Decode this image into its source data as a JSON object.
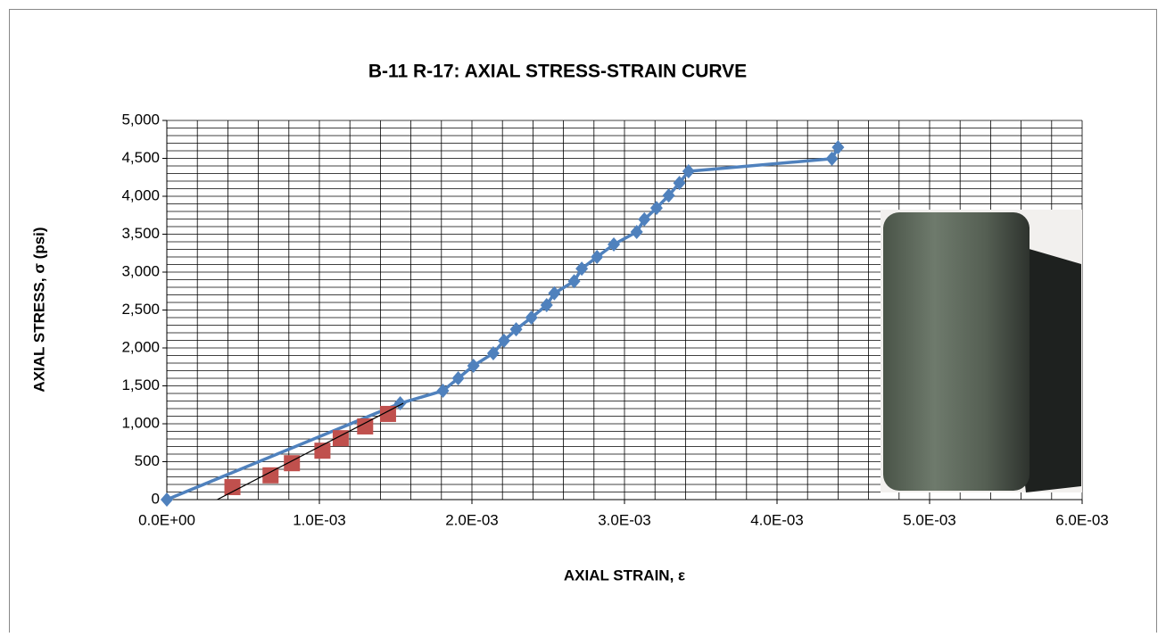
{
  "chart_data": {
    "type": "scatter",
    "title": "B-11 R-17: AXIAL STRESS-STRAIN CURVE",
    "x_label": "AXIAL STRAIN, ε",
    "y_label": "AXIAL STRESS, σ (psi)",
    "xlim": [
      0,
      0.006
    ],
    "ylim": [
      0,
      5000
    ],
    "xticks": [
      {
        "value": 0,
        "label": "0.0E+00"
      },
      {
        "value": 0.001,
        "label": "1.0E-03"
      },
      {
        "value": 0.002,
        "label": "2.0E-03"
      },
      {
        "value": 0.003,
        "label": "3.0E-03"
      },
      {
        "value": 0.004,
        "label": "4.0E-03"
      },
      {
        "value": 0.005,
        "label": "5.0E-03"
      },
      {
        "value": 0.006,
        "label": "6.0E-03"
      }
    ],
    "yticks": [
      0,
      500,
      {
        "value": 1000,
        "label": "1,000"
      },
      {
        "value": 1500,
        "label": "1,500"
      },
      {
        "value": 2000,
        "label": "2,000"
      },
      {
        "value": 2500,
        "label": "2,500"
      },
      {
        "value": 3000,
        "label": "3,000"
      },
      {
        "value": 3500,
        "label": "3,500"
      },
      {
        "value": 4000,
        "label": "4,000"
      },
      {
        "value": 4500,
        "label": "4,500"
      },
      {
        "value": 5000,
        "label": "5,000"
      }
    ],
    "grid": true,
    "x_minor_grid": [
      0,
      0.0002,
      0.0004,
      0.0006,
      0.0008,
      0.001,
      0.0012,
      0.0014,
      0.0016,
      0.0018,
      0.002,
      0.0022,
      0.0024,
      0.0026,
      0.0028,
      0.003,
      0.0032,
      0.0034,
      0.0036,
      0.0038,
      0.004,
      0.0042,
      0.0044,
      0.0046,
      0.0048,
      0.005,
      0.0052,
      0.0054,
      0.0056,
      0.0058,
      0.006
    ],
    "y_minor_grid": [
      0,
      100,
      200,
      300,
      400,
      500,
      600,
      700,
      800,
      900,
      1000,
      1100,
      1200,
      1300,
      1400,
      1500,
      1600,
      1700,
      1800,
      1900,
      2000,
      2100,
      2200,
      2300,
      2400,
      2500,
      2600,
      2700,
      2800,
      2900,
      3000,
      3100,
      3200,
      3300,
      3400,
      3500,
      3600,
      3700,
      3800,
      3900,
      4000,
      4100,
      4200,
      4300,
      4400,
      4500,
      4600,
      4700,
      4800,
      4900,
      5000
    ],
    "series": [
      {
        "color": "#4f81bd",
        "marker": "diamond",
        "line": true,
        "x": [
          0,
          0.00153,
          0.00181,
          0.00191,
          0.00201,
          0.00214,
          0.00221,
          0.00229,
          0.00239,
          0.00249,
          0.00254,
          0.00267,
          0.00272,
          0.00282,
          0.00293,
          0.00308,
          0.00313,
          0.00321,
          0.00329,
          0.00336,
          0.00342,
          0.00436,
          0.0044
        ],
        "values": [
          0,
          1270,
          1435,
          1600,
          1765,
          1930,
          2095,
          2245,
          2400,
          2565,
          2720,
          2880,
          3045,
          3200,
          3365,
          3530,
          3695,
          3845,
          4010,
          4175,
          4330,
          4495,
          4645
        ]
      },
      {
        "color": "#c0504d",
        "marker": "square",
        "line": false,
        "x": [
          0.00043,
          0.00068,
          0.00082,
          0.00102,
          0.00114,
          0.0013,
          0.00145
        ],
        "values": [
          165,
          320,
          480,
          645,
          810,
          965,
          1130
        ]
      },
      {
        "color": "#000000",
        "marker": "none",
        "line": true,
        "x": [
          0.00033,
          0.00155
        ],
        "values": [
          0,
          1270
        ]
      }
    ]
  }
}
